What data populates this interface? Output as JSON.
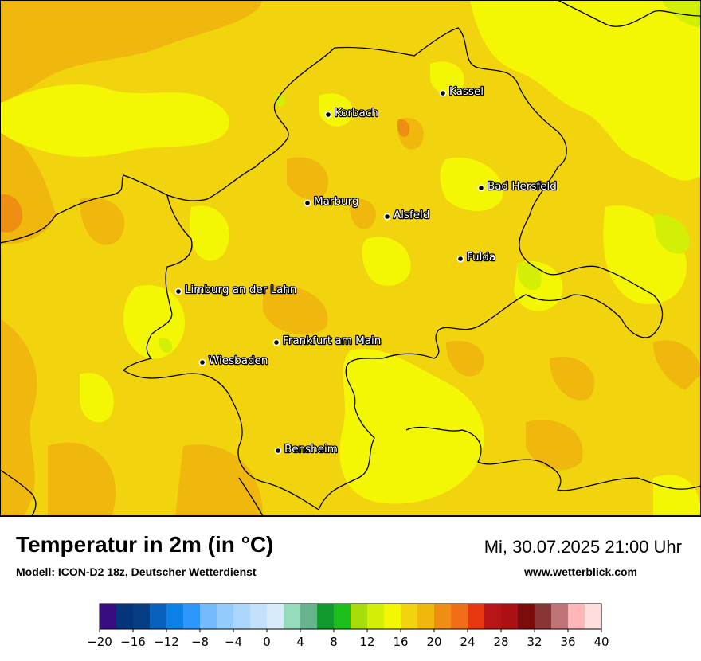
{
  "header": {
    "title": "Temperatur in 2m (in °C)",
    "model": "Modell: ICON-D2 18z, Deutscher Wetterdienst",
    "datetime": "Mi, 30.07.2025 21:00 Uhr",
    "website": "www.wetterblick.com"
  },
  "cities": [
    {
      "name": "Kassel"
    },
    {
      "name": "Korbach"
    },
    {
      "name": "Bad Hersfeld"
    },
    {
      "name": "Marburg"
    },
    {
      "name": "Alsfeld"
    },
    {
      "name": "Fulda"
    },
    {
      "name": "Limburg an der Lahn"
    },
    {
      "name": "Frankfurt am Main"
    },
    {
      "name": "Wiesbaden"
    },
    {
      "name": "Bensheim"
    }
  ],
  "legend": {
    "ticks": [
      "−20",
      "−16",
      "−12",
      "−8",
      "−4",
      "0",
      "4",
      "8",
      "12",
      "16",
      "20",
      "24",
      "28",
      "32",
      "36",
      "40"
    ],
    "min": -20,
    "max": 40,
    "step": 2,
    "colors": [
      "#3a0c82",
      "#04357a",
      "#053e82",
      "#0861bd",
      "#0a80e8",
      "#2d98fb",
      "#73bbfd",
      "#94cbfd",
      "#acd5fc",
      "#c3e0fc",
      "#d8ebfb",
      "#97dbbd",
      "#66b58e",
      "#0f9a2e",
      "#1cbf1c",
      "#a6dd0a",
      "#d3ef05",
      "#f4f703",
      "#f2d40e",
      "#f0b70d",
      "#ee8f13",
      "#f06e17",
      "#e73811",
      "#b81518",
      "#aa1014",
      "#7c0c0c",
      "#8a3535",
      "#c07478",
      "#feb6b6",
      "#fedddd"
    ]
  },
  "map_colors": {
    "base": "#f2d40e",
    "warmer": "#f0b70d",
    "warmest": "#ee8f13",
    "cooler": "#f4f703",
    "coolest": "#d3ef05",
    "border": "#000000",
    "frame": "#000000"
  }
}
